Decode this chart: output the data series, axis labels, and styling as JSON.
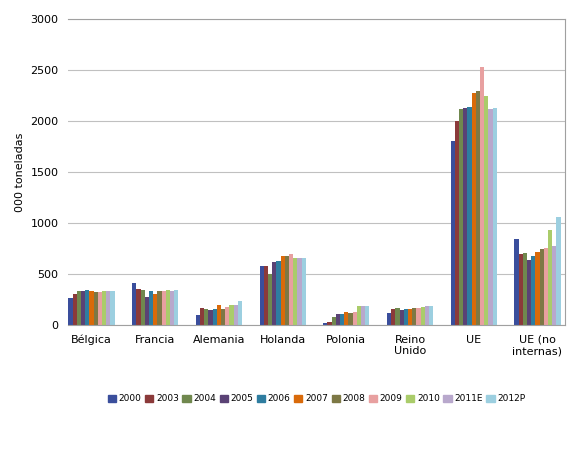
{
  "categories": [
    "Bélgica",
    "Francia",
    "Alemania",
    "Holanda",
    "Polonia",
    "Reino\nUnido",
    "UE",
    "UE (no\ninternas)"
  ],
  "years": [
    "2000",
    "2003",
    "2004",
    "2005",
    "2006",
    "2007",
    "2008",
    "2009",
    "2010",
    "2011E",
    "2012P"
  ],
  "colors": [
    "#3A4E9C",
    "#8B3A3A",
    "#70884E",
    "#5A4275",
    "#2E7DA0",
    "#D96A0A",
    "#7D7845",
    "#E8A0A0",
    "#AACC6A",
    "#B8A8CC",
    "#9CCFE0"
  ],
  "data": {
    "Bélgica": [
      270,
      305,
      330,
      330,
      340,
      330,
      325,
      325,
      335,
      330,
      330
    ],
    "Francia": [
      410,
      350,
      345,
      280,
      335,
      300,
      330,
      330,
      340,
      330,
      345
    ],
    "Alemania": [
      100,
      165,
      155,
      150,
      155,
      195,
      160,
      180,
      195,
      200,
      240
    ],
    "Holanda": [
      580,
      575,
      505,
      620,
      625,
      675,
      675,
      700,
      655,
      655,
      655
    ],
    "Polonia": [
      25,
      35,
      75,
      105,
      108,
      125,
      118,
      130,
      190,
      190,
      190
    ],
    "Reino\nUnido": [
      120,
      160,
      168,
      152,
      162,
      158,
      163,
      168,
      182,
      183,
      185
    ],
    "UE": [
      1800,
      2000,
      2120,
      2125,
      2135,
      2270,
      2295,
      2530,
      2250,
      2120,
      2130
    ],
    "UE (no\ninternas)": [
      840,
      700,
      705,
      638,
      678,
      718,
      748,
      758,
      935,
      775,
      1060
    ]
  },
  "ylabel": "000 toneladas",
  "ylim": [
    0,
    3000
  ],
  "yticks": [
    0,
    500,
    1000,
    1500,
    2000,
    2500,
    3000
  ],
  "background_color": "#FFFFFF",
  "grid_color": "#C0C0C0",
  "border_color": "#A0A0A0"
}
